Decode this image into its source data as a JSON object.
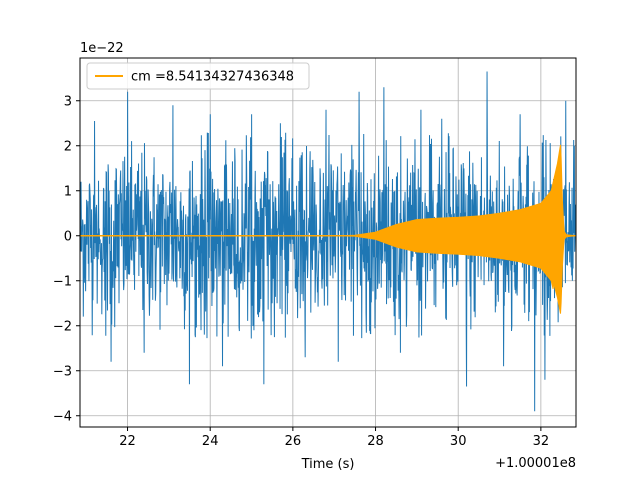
{
  "chart_data": {
    "type": "line",
    "title": "",
    "xlabel": "Time (s)",
    "ylabel": "",
    "x_offset_label": "+1.00001e8",
    "y_scale_label": "1e−22",
    "xlim": [
      20.85,
      32.85
    ],
    "ylim": [
      -4.25,
      3.95
    ],
    "grid": true,
    "legend_position": "top-left",
    "x_ticks": [
      22,
      24,
      26,
      28,
      30,
      32
    ],
    "y_ticks": [
      -4,
      -3,
      -2,
      -1,
      0,
      1,
      2,
      3
    ],
    "x_tick_labels": [
      "22",
      "24",
      "26",
      "28",
      "30",
      "32"
    ],
    "y_tick_labels": [
      "−4",
      "−3",
      "−2",
      "−1",
      "0",
      "1",
      "2",
      "3"
    ],
    "series": [
      {
        "name": "",
        "kind": "noise",
        "color": "#1f77b4",
        "x_range": [
          20.85,
          32.85
        ],
        "envelope_upper": [
          1.8,
          2.0,
          2.1,
          2.0,
          1.9,
          2.0,
          2.1,
          2.0,
          2.0,
          1.9,
          2.0,
          2.2,
          2.1,
          2.0,
          2.0,
          2.1,
          2.0,
          1.9,
          2.0,
          2.1,
          2.1,
          2.0,
          2.0,
          2.1,
          2.2
        ],
        "envelope_lower": [
          -1.8,
          -2.0,
          -2.1,
          -2.0,
          -1.9,
          -2.0,
          -2.1,
          -2.0,
          -2.0,
          -1.9,
          -2.0,
          -2.2,
          -2.1,
          -2.0,
          -2.0,
          -2.1,
          -2.0,
          -1.9,
          -2.0,
          -2.1,
          -2.1,
          -2.0,
          -2.0,
          -2.1,
          -2.2
        ],
        "spikes": [
          {
            "x": 21.2,
            "y": 2.55
          },
          {
            "x": 21.6,
            "y": -2.8
          },
          {
            "x": 22.0,
            "y": 3.2
          },
          {
            "x": 22.4,
            "y": -2.6
          },
          {
            "x": 23.1,
            "y": 2.9
          },
          {
            "x": 23.5,
            "y": -3.3
          },
          {
            "x": 24.0,
            "y": 2.7
          },
          {
            "x": 24.3,
            "y": -2.9
          },
          {
            "x": 25.0,
            "y": 2.7
          },
          {
            "x": 25.3,
            "y": -3.3
          },
          {
            "x": 25.7,
            "y": 2.5
          },
          {
            "x": 26.3,
            "y": -2.7
          },
          {
            "x": 26.8,
            "y": 2.8
          },
          {
            "x": 27.1,
            "y": -2.8
          },
          {
            "x": 27.6,
            "y": 3.2
          },
          {
            "x": 28.2,
            "y": 3.3
          },
          {
            "x": 28.6,
            "y": -2.6
          },
          {
            "x": 29.1,
            "y": 2.8
          },
          {
            "x": 29.6,
            "y": 2.6
          },
          {
            "x": 30.2,
            "y": -3.35
          },
          {
            "x": 30.7,
            "y": 3.65
          },
          {
            "x": 31.1,
            "y": -2.9
          },
          {
            "x": 31.5,
            "y": 2.7
          },
          {
            "x": 31.85,
            "y": -3.9
          },
          {
            "x": 32.1,
            "y": -3.2
          },
          {
            "x": 32.6,
            "y": 3.0
          }
        ]
      },
      {
        "name": "cm =8.54134327436348",
        "kind": "chirp",
        "color": "#ffa500",
        "x_range": [
          20.85,
          32.85
        ],
        "amplitude_points": [
          [
            20.85,
            0.0
          ],
          [
            27.0,
            0.0
          ],
          [
            27.5,
            0.01
          ],
          [
            28.0,
            0.08
          ],
          [
            28.5,
            0.25
          ],
          [
            29.0,
            0.36
          ],
          [
            29.5,
            0.39
          ],
          [
            30.0,
            0.41
          ],
          [
            30.5,
            0.44
          ],
          [
            31.0,
            0.5
          ],
          [
            31.5,
            0.58
          ],
          [
            32.0,
            0.72
          ],
          [
            32.25,
            1.0
          ],
          [
            32.4,
            1.6
          ],
          [
            32.48,
            2.05
          ],
          [
            32.52,
            0.8
          ],
          [
            32.56,
            0.1
          ],
          [
            32.62,
            0.02
          ],
          [
            32.85,
            0.0
          ]
        ],
        "lower_min": -1.35
      }
    ]
  }
}
